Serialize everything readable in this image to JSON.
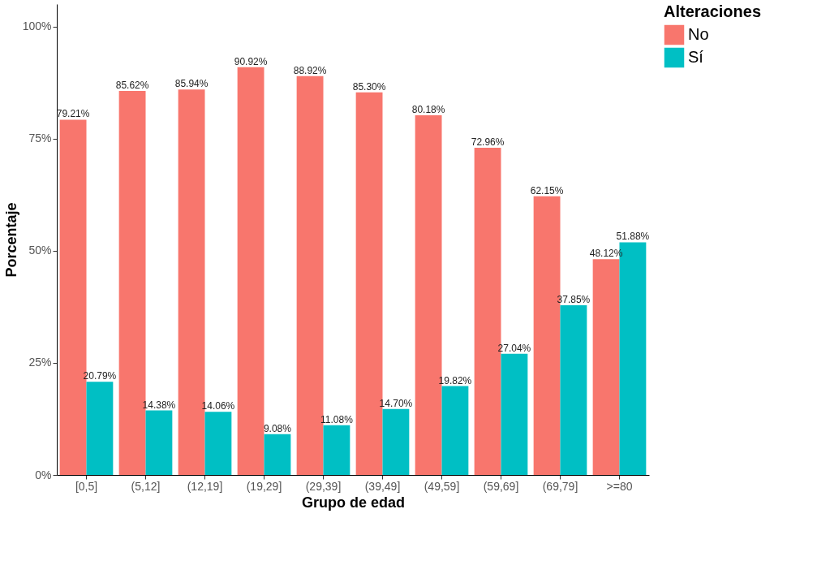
{
  "chart_data": {
    "type": "bar",
    "xlabel": "Grupo de edad",
    "ylabel": "Porcentaje",
    "legend_title": "Alteraciones",
    "legend": "right",
    "grid": false,
    "categories": [
      "[0,5]",
      "(5,12]",
      "(12,19]",
      "(19,29]",
      "(29,39]",
      "(39,49]",
      "(49,59]",
      "(59,69]",
      "(69,79]",
      ">=80"
    ],
    "series": [
      {
        "name": "No",
        "color": "#f8766d",
        "values": [
          79.21,
          85.62,
          85.94,
          90.92,
          88.92,
          85.3,
          80.18,
          72.96,
          62.15,
          48.12
        ],
        "value_labels": [
          "79.21%",
          "85.62%",
          "85.94%",
          "90.92%",
          "88.92%",
          "85.30%",
          "80.18%",
          "72.96%",
          "62.15%",
          "48.12%"
        ]
      },
      {
        "name": "Sí",
        "color": "#00bfc4",
        "values": [
          20.79,
          14.38,
          14.06,
          9.08,
          11.08,
          14.7,
          19.82,
          27.04,
          37.85,
          51.88
        ],
        "value_labels": [
          "20.79%",
          "14.38%",
          "14.06%",
          "9.08%",
          "11.08%",
          "14.70%",
          "19.82%",
          "27.04%",
          "37.85%",
          "51.88%"
        ]
      }
    ],
    "ylim": [
      0,
      105
    ],
    "yticks": [
      {
        "value": 0,
        "label": "0%"
      },
      {
        "value": 25,
        "label": "25%"
      },
      {
        "value": 50,
        "label": "50%"
      },
      {
        "value": 75,
        "label": "75%"
      },
      {
        "value": 100,
        "label": "100%"
      }
    ]
  }
}
